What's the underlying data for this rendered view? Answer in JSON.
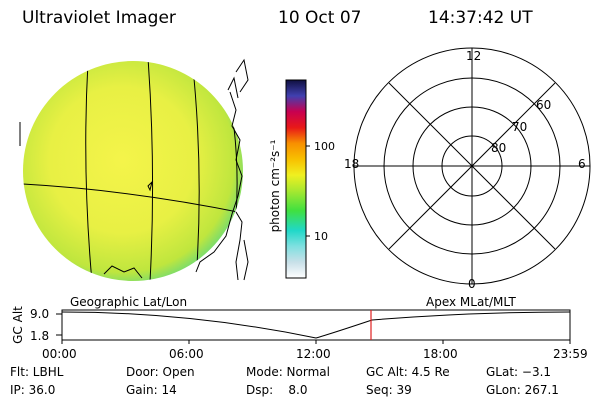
{
  "header": {
    "instrument": "Ultraviolet Imager",
    "date": "10 Oct 07",
    "time": "14:37:42 UT"
  },
  "colorbar": {
    "unit_label": "photon cm⁻²s⁻¹",
    "tick_labels": [
      "100",
      "10"
    ]
  },
  "polar_plot": {
    "mlt_labels": {
      "top": "12",
      "left": "18",
      "right": "6",
      "bottom": "0"
    },
    "lat_labels": [
      "60",
      "70",
      "80"
    ]
  },
  "orbit_panel": {
    "left_title": "Geographic Lat/Lon",
    "right_title": "Apex MLat/MLT",
    "ylabel": "GC Alt",
    "y_ticks": [
      "9.0",
      "1.8"
    ],
    "time_labels": [
      "00:00",
      "06:00",
      "12:00",
      "18:00",
      "23:59"
    ],
    "current_time_marker": "14:37:42"
  },
  "info": {
    "row1": {
      "flt": "Flt: LBHL",
      "door": "Door: Open",
      "mode": "Mode: Normal",
      "gcalt": "GC Alt: 4.5 Re",
      "glat": "GLat: −3.1"
    },
    "row2": {
      "ip": "IP: 36.0",
      "gain": "Gain: 14",
      "dsp": "Dsp:    8.0",
      "seq": "Seq: 39",
      "glon": "GLon: 267.1"
    }
  },
  "colors": {
    "disk_center": "#f2f248",
    "disk_mid": "#d6ec42",
    "disk_edge": "#48d898",
    "marker": "#e02020"
  }
}
